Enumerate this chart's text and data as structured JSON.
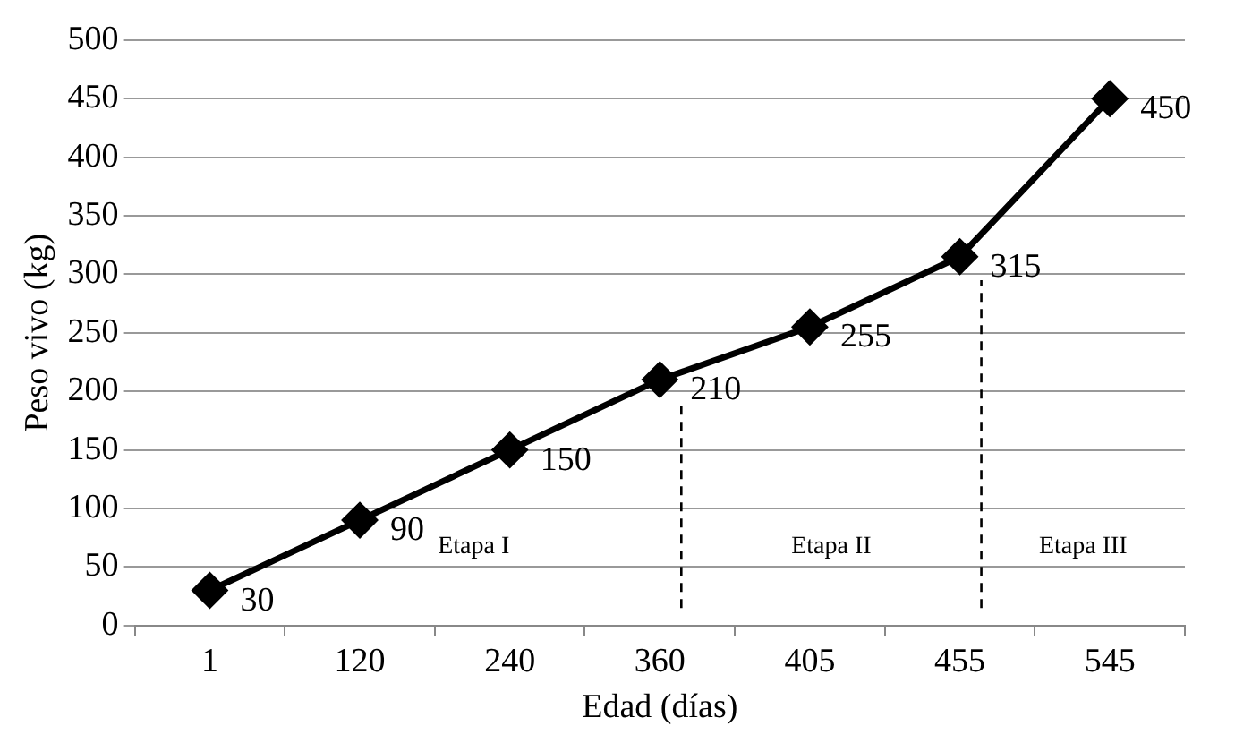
{
  "chart_data": {
    "type": "line",
    "xlabel": "Edad (días)",
    "ylabel": "Peso vivo (kg)",
    "categories": [
      "1",
      "120",
      "240",
      "360",
      "405",
      "455",
      "545"
    ],
    "series": [
      {
        "color": "#000000",
        "values": [
          30,
          90,
          150,
          210,
          255,
          315,
          450
        ]
      }
    ],
    "ylim": [
      0,
      500
    ],
    "yticks": [
      0,
      50,
      100,
      150,
      200,
      250,
      300,
      350,
      400,
      450,
      500
    ],
    "grid": "y",
    "legend": false,
    "marker": "diamond",
    "line_style": "solid",
    "data_labels": true,
    "ref_lines": [
      {
        "axis": "x",
        "value": "360",
        "color": "#000000",
        "line_style": "dashed"
      },
      {
        "axis": "x",
        "value": "455",
        "color": "#000000",
        "line_style": "dashed"
      }
    ],
    "annotations": [
      "Etapa I",
      "Etapa II",
      "Etapa III"
    ]
  }
}
